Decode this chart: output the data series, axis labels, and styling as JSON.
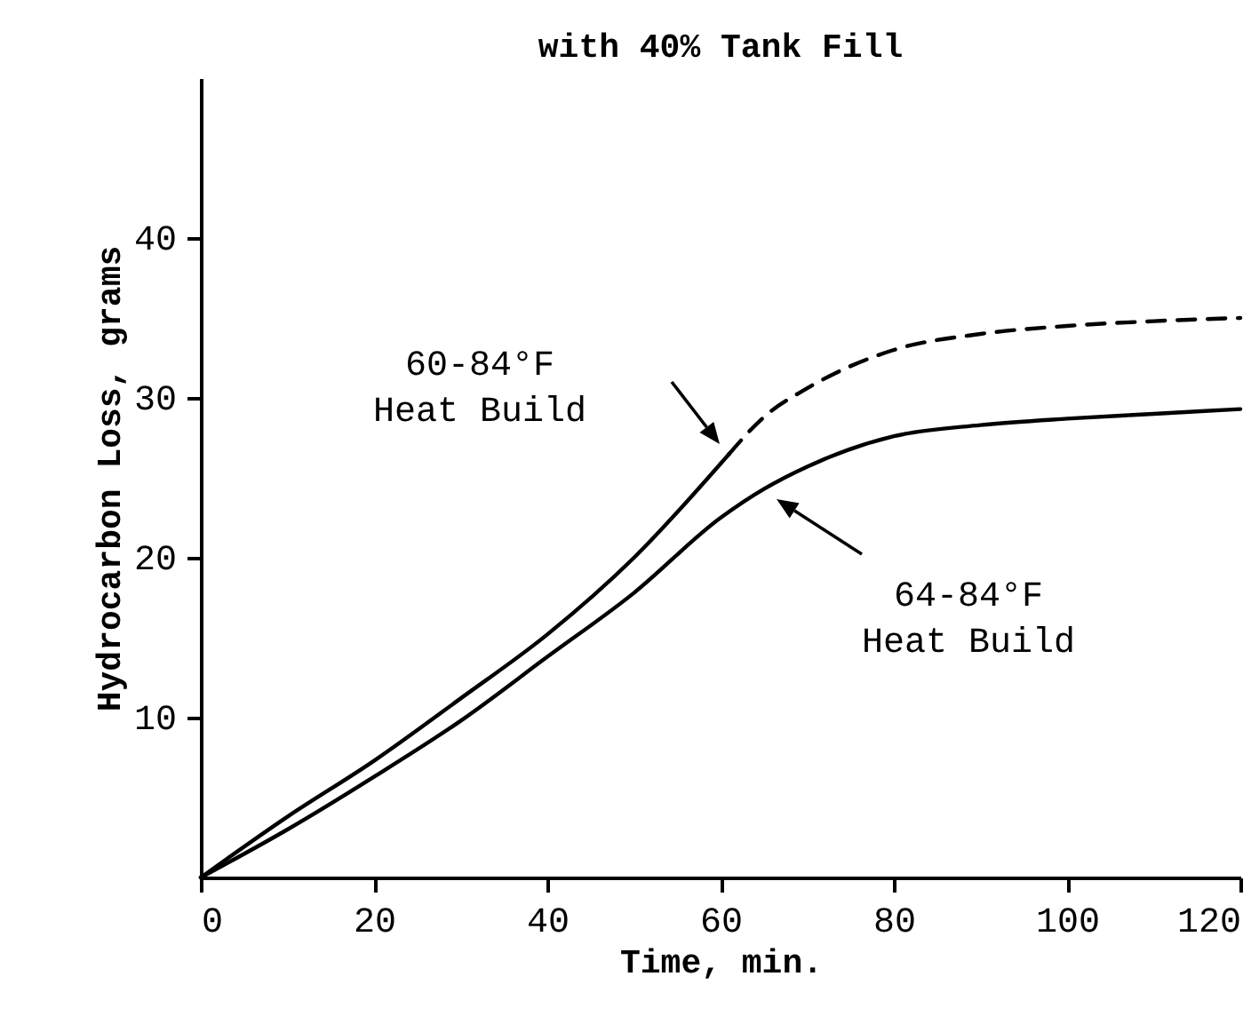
{
  "chart_data": {
    "type": "line",
    "title": "with 40% Tank Fill",
    "xlabel": "Time, min.",
    "ylabel": "Hydrocarbon Loss, grams",
    "xlim": [
      0,
      120
    ],
    "xticks": [
      0,
      20,
      40,
      60,
      80,
      100,
      120
    ],
    "ylim": [
      0,
      50
    ],
    "yticks": [
      10,
      20,
      30,
      40
    ],
    "grid": false,
    "marker": "none",
    "series": [
      {
        "color": "#000000",
        "line_style": "solid",
        "x": [
          0,
          10,
          20,
          30,
          40,
          50,
          61
        ],
        "values": [
          0,
          3.8,
          7.3,
          11.2,
          15.2,
          20.0,
          26.5
        ]
      },
      {
        "color": "#000000",
        "line_style": "dashed",
        "x": [
          61,
          65,
          70,
          80,
          90,
          100,
          110,
          120
        ],
        "values": [
          26.5,
          28.8,
          30.6,
          33.0,
          34.0,
          34.5,
          34.8,
          35.0
        ]
      },
      {
        "color": "#000000",
        "line_style": "solid",
        "x": [
          0,
          10,
          20,
          30,
          40,
          50,
          60,
          65,
          70,
          80,
          90,
          100,
          110,
          120
        ],
        "values": [
          0,
          3.0,
          6.3,
          9.8,
          13.8,
          17.8,
          22.5,
          24.3,
          25.7,
          27.6,
          28.3,
          28.7,
          29.0,
          29.3
        ]
      }
    ],
    "annotations": [
      "60-84°F\nHeat Build",
      "64-84°F\nHeat Build"
    ]
  }
}
